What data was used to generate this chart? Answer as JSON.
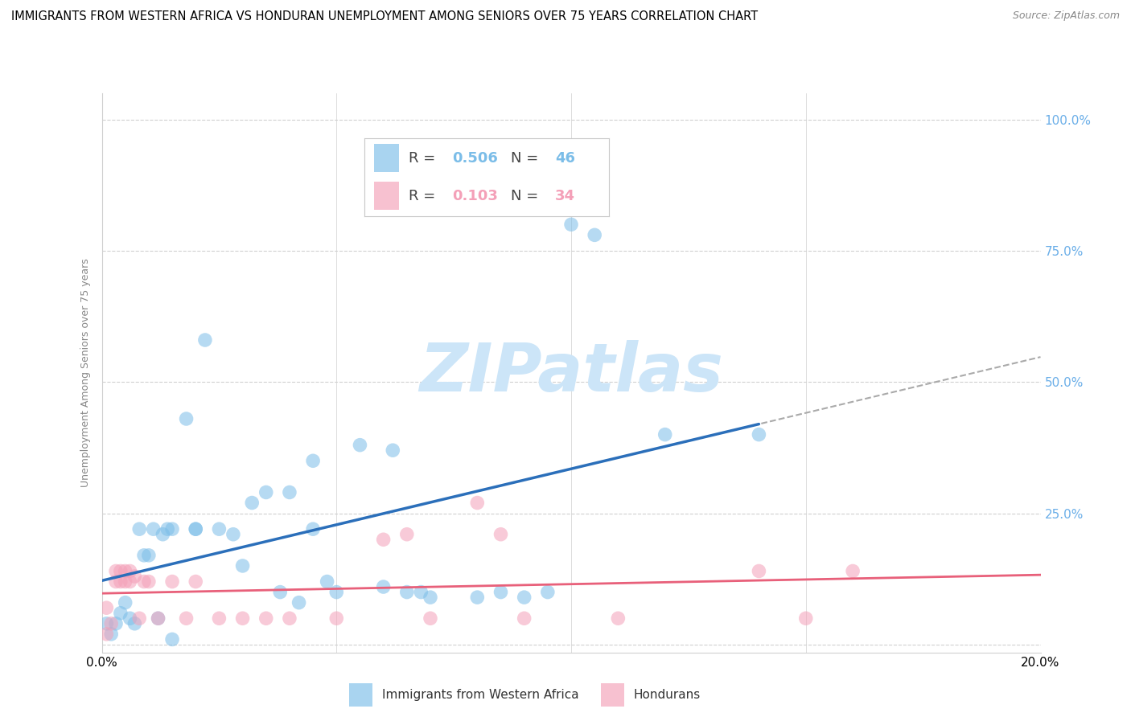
{
  "title": "IMMIGRANTS FROM WESTERN AFRICA VS HONDURAN UNEMPLOYMENT AMONG SENIORS OVER 75 YEARS CORRELATION CHART",
  "source": "Source: ZipAtlas.com",
  "ylabel": "Unemployment Among Seniors over 75 years",
  "legend_label1": "Immigrants from Western Africa",
  "legend_label2": "Hondurans",
  "R1": "0.506",
  "N1": "46",
  "R2": "0.103",
  "N2": "34",
  "blue_color": "#7bbde8",
  "pink_color": "#f4a0b8",
  "blue_line_color": "#2b6fba",
  "pink_line_color": "#e8607a",
  "blue_dash_color": "#aacce8",
  "grid_color": "#d0d0d0",
  "right_tick_color": "#6aaee8",
  "watermark_color": "#daeeff",
  "background": "#ffffff",
  "xlim": [
    0.0,
    0.2
  ],
  "ylim": [
    -0.015,
    1.05
  ],
  "yticks": [
    0.0,
    0.25,
    0.5,
    0.75,
    1.0
  ],
  "xticks": [
    0.0,
    0.05,
    0.1,
    0.15,
    0.2
  ],
  "xtick_labels": [
    "0.0%",
    "",
    "",
    "",
    "20.0%"
  ],
  "ytick_labels_right": [
    "",
    "25.0%",
    "50.0%",
    "75.0%",
    "100.0%"
  ],
  "blue_x": [
    0.001,
    0.002,
    0.003,
    0.004,
    0.005,
    0.006,
    0.007,
    0.008,
    0.009,
    0.01,
    0.011,
    0.012,
    0.013,
    0.014,
    0.015,
    0.015,
    0.018,
    0.02,
    0.022,
    0.025,
    0.028,
    0.03,
    0.032,
    0.035,
    0.038,
    0.04,
    0.042,
    0.045,
    0.048,
    0.05,
    0.055,
    0.06,
    0.062,
    0.065,
    0.068,
    0.07,
    0.08,
    0.085,
    0.09,
    0.095,
    0.1,
    0.105,
    0.12,
    0.14,
    0.045,
    0.02
  ],
  "blue_y": [
    0.04,
    0.02,
    0.04,
    0.06,
    0.08,
    0.05,
    0.04,
    0.22,
    0.17,
    0.17,
    0.22,
    0.05,
    0.21,
    0.22,
    0.22,
    0.01,
    0.43,
    0.22,
    0.58,
    0.22,
    0.21,
    0.15,
    0.27,
    0.29,
    0.1,
    0.29,
    0.08,
    0.35,
    0.12,
    0.1,
    0.38,
    0.11,
    0.37,
    0.1,
    0.1,
    0.09,
    0.09,
    0.1,
    0.09,
    0.1,
    0.8,
    0.78,
    0.4,
    0.4,
    0.22,
    0.22
  ],
  "pink_x": [
    0.001,
    0.001,
    0.002,
    0.003,
    0.003,
    0.004,
    0.004,
    0.005,
    0.005,
    0.006,
    0.006,
    0.007,
    0.008,
    0.009,
    0.01,
    0.012,
    0.015,
    0.018,
    0.02,
    0.025,
    0.03,
    0.035,
    0.04,
    0.05,
    0.06,
    0.065,
    0.07,
    0.08,
    0.085,
    0.09,
    0.11,
    0.14,
    0.15,
    0.16
  ],
  "pink_y": [
    0.02,
    0.07,
    0.04,
    0.12,
    0.14,
    0.12,
    0.14,
    0.12,
    0.14,
    0.12,
    0.14,
    0.13,
    0.05,
    0.12,
    0.12,
    0.05,
    0.12,
    0.05,
    0.12,
    0.05,
    0.05,
    0.05,
    0.05,
    0.05,
    0.2,
    0.21,
    0.05,
    0.27,
    0.21,
    0.05,
    0.05,
    0.14,
    0.05,
    0.14
  ],
  "title_fontsize": 10.5,
  "source_fontsize": 9,
  "ylabel_fontsize": 9,
  "tick_fontsize": 11
}
